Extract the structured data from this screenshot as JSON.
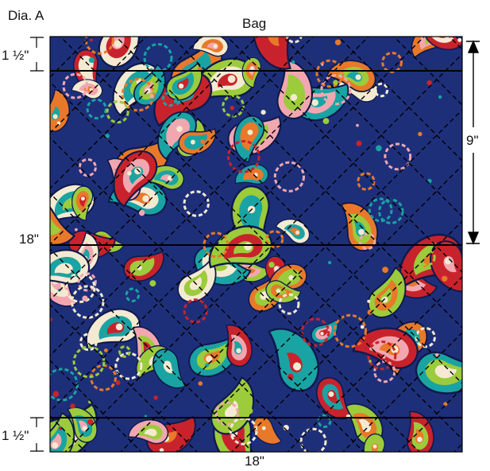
{
  "figure_label": "Dia. A",
  "panel_title": "Bag",
  "dimensions": {
    "top_band": "1 ½\"",
    "bottom_band": "1 ½\"",
    "left_height": "18\"",
    "bottom_width": "18\"",
    "half_height": "9\""
  },
  "colors": {
    "fabric_base": "#1e2f7a",
    "paisley_orange": "#e8792a",
    "paisley_teal": "#1aa3a3",
    "paisley_lime": "#9ccb3b",
    "paisley_pink": "#f2a7b0",
    "paisley_red": "#c8232c",
    "paisley_light": "#f4ead2",
    "line": "#000000"
  }
}
